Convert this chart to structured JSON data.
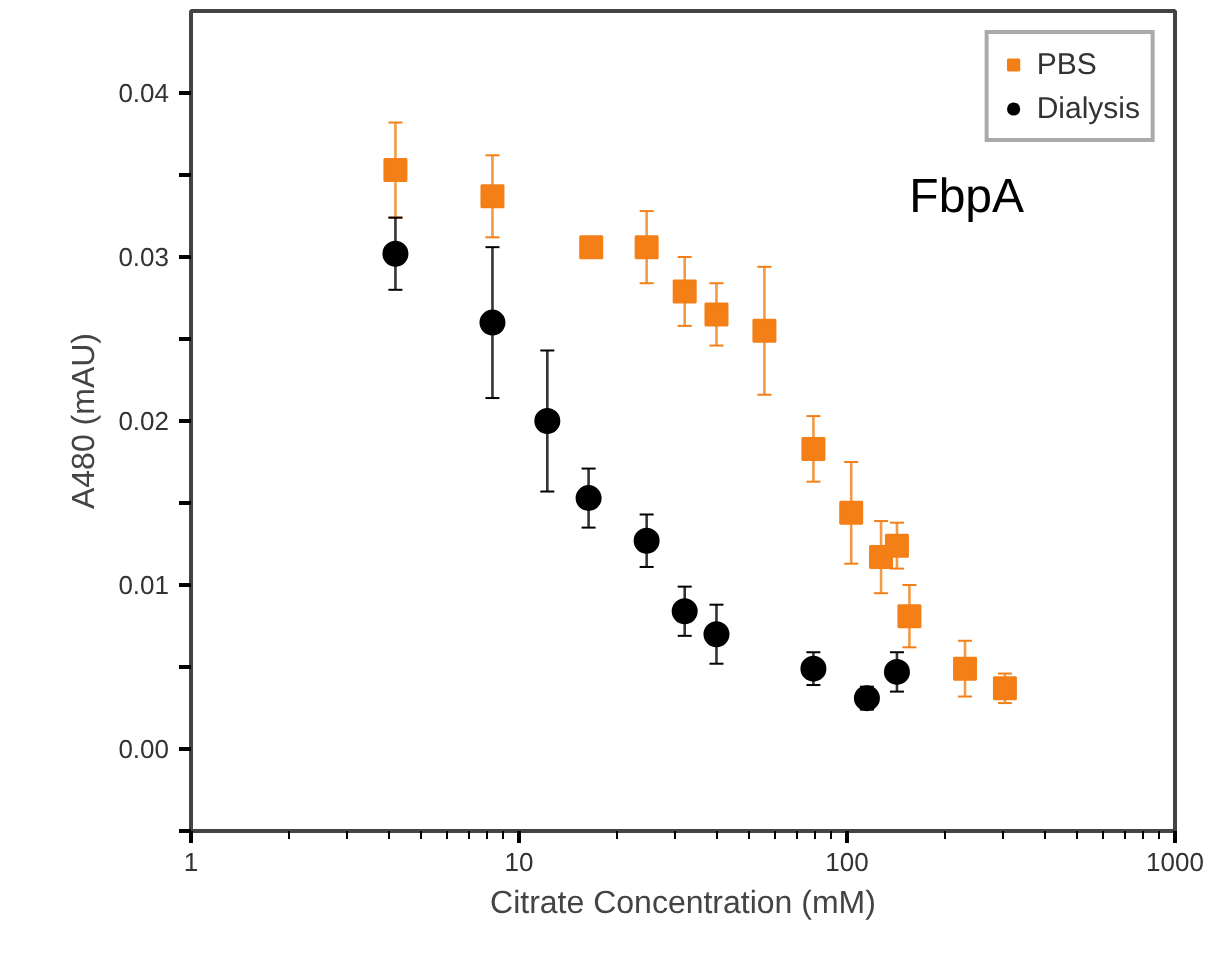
{
  "chart_data": {
    "type": "scatter",
    "xlabel": "Citrate Concentration (mM)",
    "ylabel": "A480 (mAU)",
    "log": "x",
    "xlim": [
      1,
      1000
    ],
    "xticks": [
      1,
      10,
      100,
      1000
    ],
    "ylim": [
      -0.005,
      0.045
    ],
    "yticks": [
      {
        "value": -0.005,
        "label": null
      },
      "0.00",
      {
        "value": 0.005,
        "label": null
      },
      {
        "value": 0.01,
        "label": "0.01"
      },
      {
        "value": 0.015,
        "label": null
      },
      {
        "value": 0.02,
        "label": "0.02"
      },
      {
        "value": 0.025,
        "label": null
      },
      {
        "value": 0.03,
        "label": "0.03"
      },
      {
        "value": 0.035,
        "label": null
      },
      {
        "value": 0.04,
        "label": "0.04"
      }
    ],
    "grid": false,
    "legend": "top right",
    "annotations": [
      "FbpA"
    ],
    "series": [
      {
        "name": "PBS",
        "color": "#f47f17",
        "marker": "square",
        "x": [
          4.2,
          8.3,
          16.6,
          24.5,
          32,
          40,
          56,
          79,
          103,
          127,
          142,
          155,
          229,
          303
        ],
        "values": [
          0.0353,
          0.0337,
          0.0306,
          0.0306,
          0.0279,
          0.0265,
          0.0255,
          0.0183,
          0.0144,
          0.0117,
          0.0124,
          0.0081,
          0.0049,
          0.0037
        ],
        "errors": [
          0.0029,
          0.0025,
          null,
          0.0022,
          0.0021,
          0.0019,
          0.0039,
          0.002,
          0.0031,
          0.0022,
          0.0014,
          0.0019,
          0.0017,
          0.0009
        ]
      },
      {
        "name": "Dialysis",
        "color": "#000000",
        "marker": "circle",
        "x": [
          4.2,
          8.3,
          12.2,
          16.3,
          24.5,
          32,
          40,
          79,
          115,
          142
        ],
        "values": [
          0.0302,
          0.026,
          0.02,
          0.0153,
          0.0127,
          0.0084,
          0.007,
          0.0049,
          0.0031,
          0.0047
        ],
        "errors": [
          0.0022,
          0.0046,
          0.0043,
          0.0018,
          0.0016,
          0.0015,
          0.0018,
          0.001,
          0.0007,
          0.0012
        ]
      }
    ]
  }
}
